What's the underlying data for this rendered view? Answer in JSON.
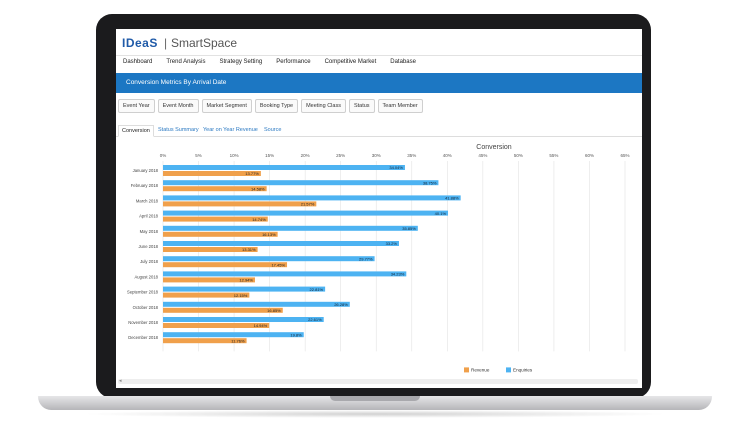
{
  "app": {
    "logo": "IDeaS",
    "separator": "|",
    "brand": "SmartSpace"
  },
  "menu": [
    "Dashboard",
    "Trend Analysis",
    "Strategy Setting",
    "Performance",
    "Competitive Market",
    "Database"
  ],
  "banner": {
    "title": "Conversion Metrics By Arrival Date"
  },
  "filters": [
    "Event Year",
    "Event Month",
    "Market Segment",
    "Booking Type",
    "Meeting Class",
    "Status",
    "Team Member"
  ],
  "tabs": [
    {
      "label": "Conversion",
      "active": true
    },
    {
      "label": "Status Summary",
      "active": false
    },
    {
      "label": "Year on Year Revenue",
      "active": false
    },
    {
      "label": "Source",
      "active": false
    }
  ],
  "chart_data": {
    "type": "bar",
    "title": "Conversion",
    "orientation": "horizontal",
    "xlim": [
      0,
      65
    ],
    "xticks": [
      "0%",
      "5%",
      "10%",
      "15%",
      "20%",
      "25%",
      "30%",
      "35%",
      "40%",
      "45%",
      "50%",
      "55%",
      "60%",
      "65%"
    ],
    "categories": [
      "January 2018",
      "February 2018",
      "March 2018",
      "April 2018",
      "May 2018",
      "June 2018",
      "July 2018",
      "August 2018",
      "September 2018",
      "October 2018",
      "November 2018",
      "December 2018"
    ],
    "series": [
      {
        "name": "Enquiries",
        "color": "#4db3f2",
        "values": [
          34.04,
          38.75,
          41.88,
          40.1,
          35.85,
          33.2,
          29.77,
          34.23,
          22.81,
          26.28,
          22.61,
          19.8
        ],
        "labels": [
          "34.04%",
          "38.75%",
          "41.88%",
          "40.1%",
          "35.85%",
          "33.2%",
          "29.77%",
          "34.23%",
          "22.81%",
          "26.28%",
          "22.61%",
          "19.8%"
        ]
      },
      {
        "name": "Revenue",
        "color": "#f0a04b",
        "values": [
          13.77,
          14.58,
          21.57,
          14.74,
          16.13,
          13.31,
          17.45,
          12.94,
          12.15,
          16.85,
          14.94,
          11.76
        ],
        "labels": [
          "13.77%",
          "14.58%",
          "21.57%",
          "14.74%",
          "16.13%",
          "13.31%",
          "17.45%",
          "12.94%",
          "12.15%",
          "16.85%",
          "14.94%",
          "11.76%"
        ]
      }
    ],
    "legend_position": "bottom-right",
    "grid": true
  }
}
